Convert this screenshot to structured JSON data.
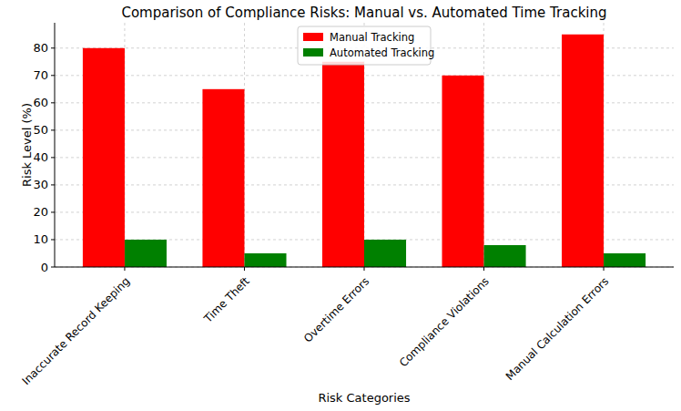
{
  "chart_data": {
    "type": "bar",
    "title": "Comparison of Compliance Risks: Manual vs. Automated Time Tracking",
    "x_label": "Risk Categories",
    "y_label": "Risk Level (%)",
    "categories": [
      "Inaccurate Record Keeping",
      "Time Theft",
      "Overtime Errors",
      "Compliance Violations",
      "Manual Calculation Errors"
    ],
    "series": [
      {
        "name": "Manual Tracking",
        "color": "#ff0000",
        "values": [
          80,
          65,
          75,
          70,
          85
        ]
      },
      {
        "name": "Automated Tracking",
        "color": "#008000",
        "values": [
          10,
          5,
          10,
          8,
          5
        ]
      }
    ],
    "ylim": [
      0,
      89.25
    ],
    "yticks": [
      0,
      10,
      20,
      30,
      40,
      50,
      60,
      70,
      80
    ],
    "grid": true,
    "legend": "upper center"
  }
}
